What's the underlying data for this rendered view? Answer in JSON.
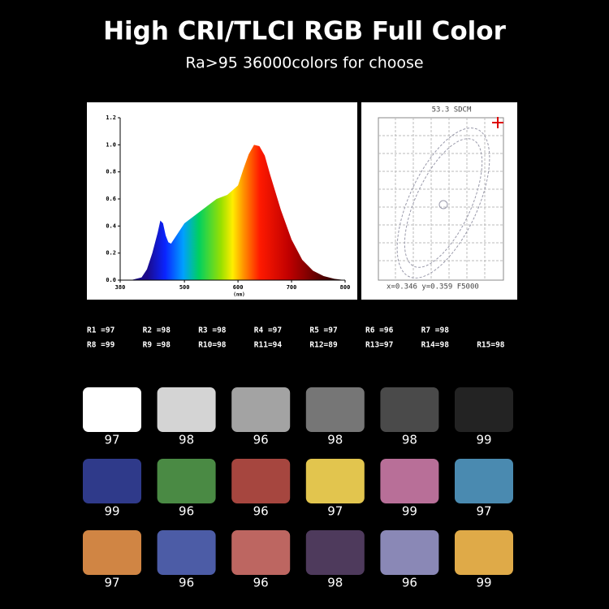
{
  "header": {
    "title": "High CRI/TLCI  RGB Full Color",
    "subtitle": "Ra>95 36000colors for choose"
  },
  "chart_data": {
    "type": "area",
    "xlabel": "(nm)",
    "x": [
      380,
      400,
      420,
      430,
      440,
      450,
      455,
      460,
      465,
      470,
      475,
      480,
      490,
      500,
      520,
      540,
      560,
      580,
      600,
      610,
      620,
      630,
      640,
      650,
      660,
      680,
      700,
      720,
      740,
      760,
      780,
      800
    ],
    "values": [
      0,
      0,
      0.02,
      0.08,
      0.2,
      0.35,
      0.44,
      0.42,
      0.33,
      0.28,
      0.27,
      0.3,
      0.36,
      0.42,
      0.48,
      0.54,
      0.6,
      0.63,
      0.7,
      0.82,
      0.93,
      1.0,
      0.99,
      0.92,
      0.78,
      0.52,
      0.3,
      0.15,
      0.07,
      0.03,
      0.01,
      0
    ],
    "xlim": [
      380,
      800
    ],
    "ylim": [
      0,
      1.2
    ],
    "xticks": [
      380,
      500,
      600,
      700,
      800
    ],
    "yticks": [
      {
        "value": 0,
        "label": "0.0"
      },
      0.2,
      0.4,
      0.6,
      0.8,
      {
        "value": 1,
        "label": "1.0"
      },
      1.2
    ]
  },
  "chromaticity": {
    "title": "53.3 SDCM",
    "caption": "x=0.346 y=0.359 F5000"
  },
  "cri": [
    [
      "R1 =97",
      "R2 =98",
      "R3 =98",
      "R4 =97",
      "R5 =97",
      "R6 =96",
      "R7 =98"
    ],
    [
      "R8 =99",
      "R9 =98",
      "R10=98",
      "R11=94",
      "R12=89",
      "R13=97",
      "R14=98",
      "R15=98"
    ]
  ],
  "swatches": [
    {
      "color": "#ffffff",
      "value": 97
    },
    {
      "color": "#d4d4d4",
      "value": 98
    },
    {
      "color": "#a3a3a3",
      "value": 96
    },
    {
      "color": "#767676",
      "value": 98
    },
    {
      "color": "#4a4a4a",
      "value": 98
    },
    {
      "color": "#232323",
      "value": 99
    },
    {
      "color": "#2f3a8a",
      "value": 99
    },
    {
      "color": "#4a8a44",
      "value": 96
    },
    {
      "color": "#a6463f",
      "value": 96
    },
    {
      "color": "#e2c54e",
      "value": 97
    },
    {
      "color": "#b86f98",
      "value": 99
    },
    {
      "color": "#4a8ab0",
      "value": 97
    },
    {
      "color": "#d08544",
      "value": 97
    },
    {
      "color": "#4c5ca6",
      "value": 96
    },
    {
      "color": "#bd6661",
      "value": 96
    },
    {
      "color": "#4e3a5c",
      "value": 98
    },
    {
      "color": "#8a88b6",
      "value": 96
    },
    {
      "color": "#dfaa48",
      "value": 99
    }
  ]
}
